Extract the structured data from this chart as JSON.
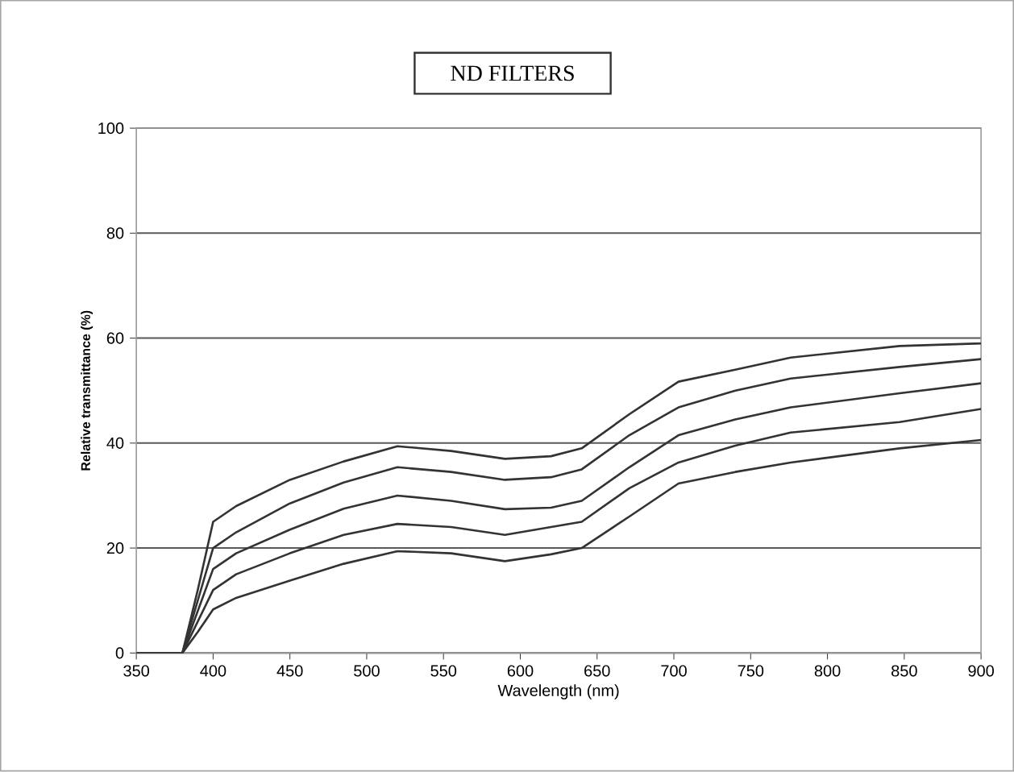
{
  "chart_data": {
    "type": "line",
    "title": "ND FILTERS",
    "xlabel": "Wavelength (nm)",
    "ylabel": "Relative transmittance (%)",
    "x": [
      350,
      380,
      390,
      400,
      415,
      450,
      485,
      520,
      555,
      590,
      620,
      640,
      671,
      703,
      740,
      776,
      847,
      900
    ],
    "series": [
      {
        "color": "#333333",
        "values": [
          0,
          0,
          12,
          25,
          28,
          33,
          36.5,
          39.4,
          38.5,
          37,
          37.5,
          39,
          45.5,
          51.7,
          54,
          56.3,
          58.5,
          59
        ]
      },
      {
        "color": "#333333",
        "values": [
          0,
          0,
          10,
          20,
          23,
          28.5,
          32.5,
          35.4,
          34.5,
          33,
          33.5,
          35,
          41.5,
          46.8,
          50,
          52.3,
          54.5,
          56
        ]
      },
      {
        "color": "#333333",
        "values": [
          0,
          0,
          8,
          16,
          19,
          23.5,
          27.5,
          30,
          29,
          27.4,
          27.7,
          29,
          35.4,
          41.5,
          44.5,
          46.8,
          49.5,
          51.4
        ]
      },
      {
        "color": "#333333",
        "values": [
          0,
          0,
          6,
          12,
          15,
          19,
          22.5,
          24.6,
          24,
          22.5,
          24,
          25,
          31.4,
          36.3,
          39.5,
          42,
          44,
          46.5
        ]
      },
      {
        "color": "#333333",
        "values": [
          0,
          0,
          4,
          8.3,
          10.5,
          13.8,
          17,
          19.4,
          19,
          17.5,
          18.8,
          20,
          26,
          32.3,
          34.5,
          36.3,
          39,
          40.6
        ]
      }
    ],
    "xlim": [
      350,
      900
    ],
    "xticks": [
      350,
      400,
      450,
      500,
      550,
      600,
      650,
      700,
      750,
      800,
      850,
      900
    ],
    "ylim": [
      0,
      100
    ],
    "yticks": [
      0,
      20,
      40,
      60,
      80,
      100
    ],
    "grid": "y",
    "marker": "none",
    "line_style": "solid"
  }
}
